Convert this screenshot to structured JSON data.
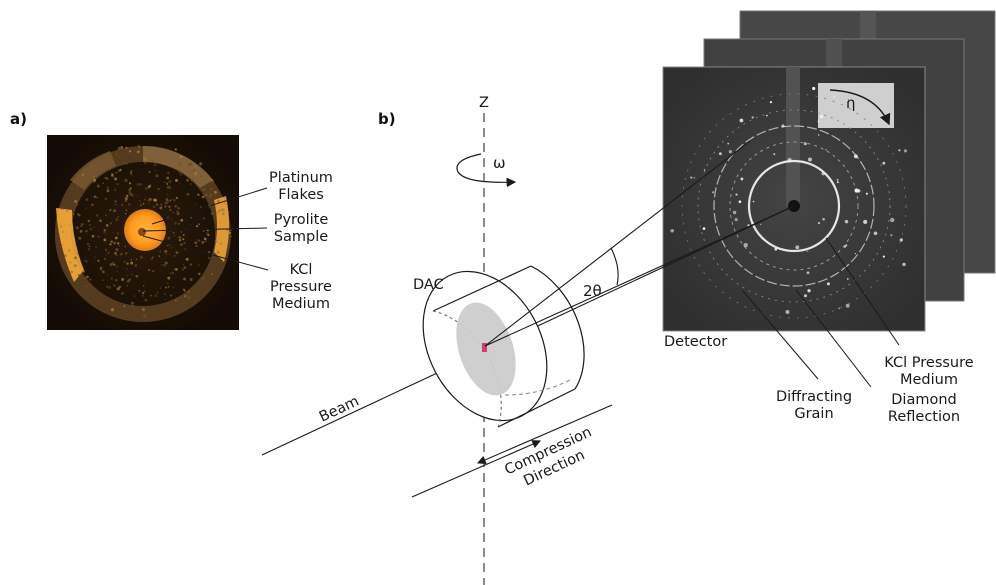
{
  "panel_a": {
    "tag": "a)",
    "labels": {
      "platinum_1": "Platinum",
      "platinum_2": "Flakes",
      "pyrolite_1": "Pyrolite",
      "pyrolite_2": "Sample",
      "kcl_1": "KCl",
      "kcl_2": "Pressure",
      "kcl_3": "Medium"
    },
    "colors": {
      "background": "#1d1206",
      "ring": "#5c4020",
      "sample": "#ff9a1c",
      "highlight": "#ffb23a"
    }
  },
  "panel_b": {
    "tag": "b)",
    "labels": {
      "z": "Z",
      "omega": "ω",
      "eta": "η",
      "dac": "DAC",
      "two_theta": "2θ",
      "beam": "Beam",
      "compression_1": "Compression",
      "compression_2": "Direction",
      "detector": "Detector",
      "kcl_1": "KCl Pressure",
      "kcl_2": "Medium",
      "diamond_1": "Diamond",
      "diamond_2": "Reflection",
      "grain_1": "Diffracting",
      "grain_2": "Grain"
    },
    "colors": {
      "detector_bg": "#3a3a3a",
      "detector_back": "#474747",
      "ring": "#e0e0e0",
      "sample_ellipse": "#cccccc",
      "sample_mark": "#d0406a"
    }
  }
}
